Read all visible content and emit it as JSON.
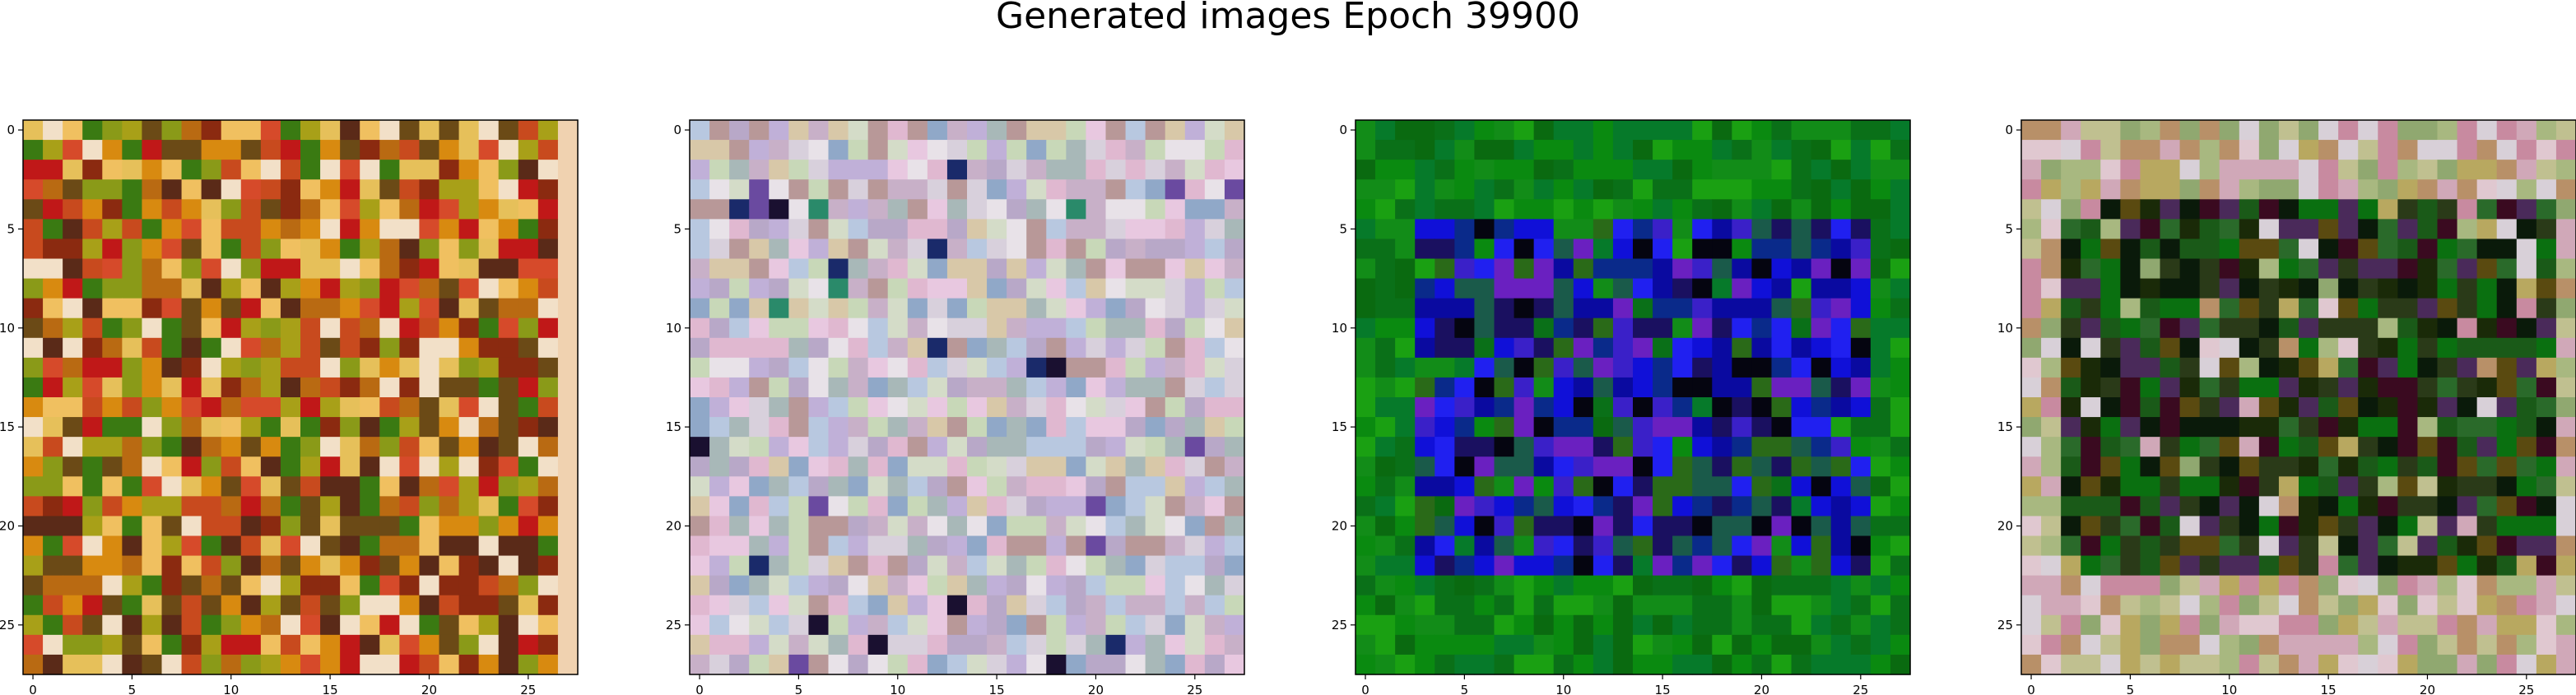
{
  "figure": {
    "title": "Generated images Epoch 39900"
  },
  "chart_data": [
    {
      "type": "heatmap",
      "panel": 1,
      "grid_size": [
        28,
        28
      ],
      "xticks": [
        0,
        5,
        10,
        15,
        20,
        25
      ],
      "yticks": [
        0,
        5,
        10,
        15,
        20,
        25
      ],
      "palette": [
        "#8b2a10",
        "#c84a1e",
        "#d88a10",
        "#b96a12",
        "#a8a018",
        "#6b4a16",
        "#d64a2a",
        "#f0c060",
        "#e6c05a",
        "#3a7a12",
        "#c01818",
        "#8a9a18",
        "#5a2a18",
        "#f2e0c8"
      ],
      "right_edge_color": "#f0d2b0",
      "dominant_colors": [
        "#c86a18",
        "#b84a1a",
        "#d8a018"
      ]
    },
    {
      "type": "heatmap",
      "panel": 2,
      "grid_size": [
        28,
        28
      ],
      "xticks": [
        0,
        5,
        10,
        15,
        20,
        25
      ],
      "yticks": [
        0,
        5,
        10,
        15,
        20,
        25
      ],
      "palette": [
        "#e8e2e8",
        "#d8d0dc",
        "#c8b0c8",
        "#b8c8e0",
        "#c8d8b8",
        "#e0b8d0",
        "#b8a8c8",
        "#a8b8b8",
        "#d8c8a8",
        "#e8c8e0",
        "#90a8c8",
        "#b89898",
        "#d4dcc8",
        "#c0b0d8"
      ],
      "accent_colors": [
        "#1a1030",
        "#2a8a6a",
        "#6a4aa0",
        "#1a2a6a"
      ],
      "dominant_colors": [
        "#e0d8e4",
        "#c8c0d8"
      ]
    },
    {
      "type": "heatmap",
      "panel": 3,
      "grid_size": [
        28,
        28
      ],
      "xticks": [
        0,
        5,
        10,
        15,
        20,
        25
      ],
      "yticks": [
        0,
        5,
        10,
        15,
        20,
        25
      ],
      "outer_palette": [
        "#0a8a10",
        "#1aa012",
        "#0a7018",
        "#067a2a",
        "#128c18",
        "#0a6a10"
      ],
      "inner_palette": [
        "#1010d8",
        "#2020f0",
        "#0a0aa0",
        "#1a1060",
        "#3a20c8",
        "#0a2a8a",
        "#1a5a4a",
        "#2a6a18",
        "#050510",
        "#6a20c0"
      ],
      "inner_region": {
        "rows": [
          5,
          22
        ],
        "cols": [
          3,
          25
        ]
      },
      "dominant_colors": [
        "#0a8a10",
        "#1818d0"
      ]
    },
    {
      "type": "heatmap",
      "panel": 4,
      "grid_size": [
        28,
        28
      ],
      "xticks": [
        0,
        5,
        10,
        15,
        20,
        25
      ],
      "yticks": [
        0,
        5,
        10,
        15,
        20,
        25
      ],
      "outer_palette": [
        "#c0c090",
        "#d0a8b8",
        "#b8a860",
        "#c88aa0",
        "#a8b880",
        "#d8d0d8",
        "#90a870",
        "#b89068",
        "#e0c8d0"
      ],
      "inner_palette": [
        "#1a5a18",
        "#0a7010",
        "#2a3a18",
        "#0a1a0a",
        "#4a2a5a",
        "#2a6a2a",
        "#5a4a10",
        "#1a2a08",
        "#3a0a20"
      ],
      "inner_region": {
        "rows": [
          4,
          22
        ],
        "cols": [
          2,
          26
        ]
      },
      "dominant_colors": [
        "#2a5a1a",
        "#c0a8a8"
      ]
    }
  ]
}
